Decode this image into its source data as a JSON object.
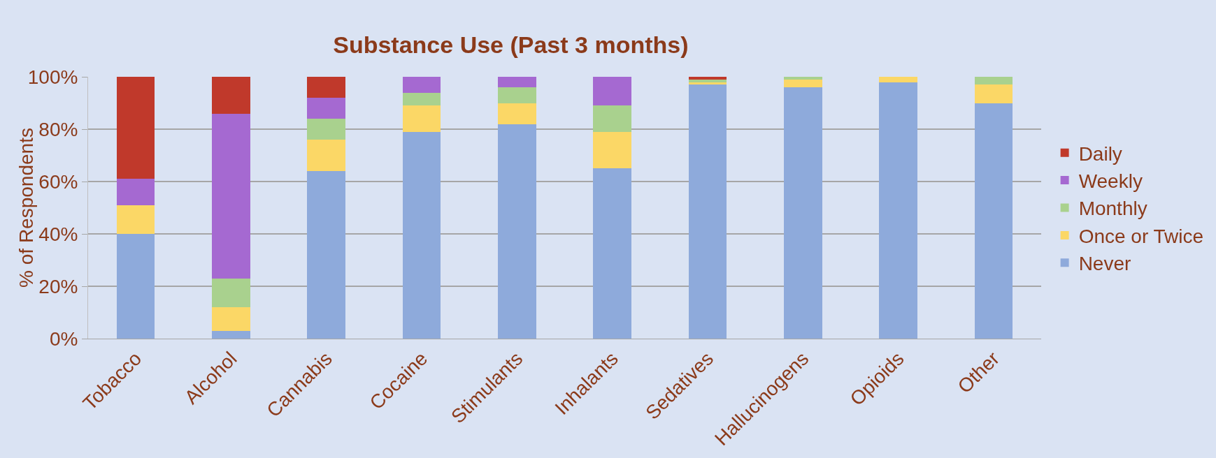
{
  "chart_data": {
    "type": "bar",
    "title": "Substance Use (Past 3 months)",
    "ylabel": "% of Respondents",
    "stacked": true,
    "categories": [
      "Tobacco",
      "Alcohol",
      "Cannabis",
      "Cocaine",
      "Stimulants",
      "Inhalants",
      "Sedatives",
      "Hallucinogens",
      "Opioids",
      "Other"
    ],
    "series": [
      {
        "name": "Never",
        "color": "#8eaadb",
        "values": [
          40,
          3,
          64,
          79,
          82,
          65,
          97,
          96,
          98,
          90
        ]
      },
      {
        "name": "Once or Twice",
        "color": "#fbd766",
        "values": [
          11,
          9,
          12,
          10,
          8,
          14,
          1,
          3,
          2,
          7
        ]
      },
      {
        "name": "Monthly",
        "color": "#a9d18e",
        "values": [
          0,
          11,
          8,
          5,
          6,
          10,
          1,
          1,
          0,
          3
        ]
      },
      {
        "name": "Weekly",
        "color": "#a569d1",
        "values": [
          10,
          63,
          8,
          6,
          4,
          11,
          0,
          0,
          0,
          0
        ]
      },
      {
        "name": "Daily",
        "color": "#c0392b",
        "values": [
          39,
          14,
          8,
          0,
          0,
          0,
          1,
          0,
          0,
          0
        ]
      }
    ],
    "ylim": [
      0,
      100
    ],
    "yticks": [
      {
        "value": 0,
        "label": "0%"
      },
      {
        "value": 20,
        "label": "20%"
      },
      {
        "value": 40,
        "label": "40%"
      },
      {
        "value": 60,
        "label": "60%"
      },
      {
        "value": 80,
        "label": "80%"
      },
      {
        "value": 100,
        "label": "100%"
      }
    ],
    "grid": "y",
    "legend": "right"
  }
}
